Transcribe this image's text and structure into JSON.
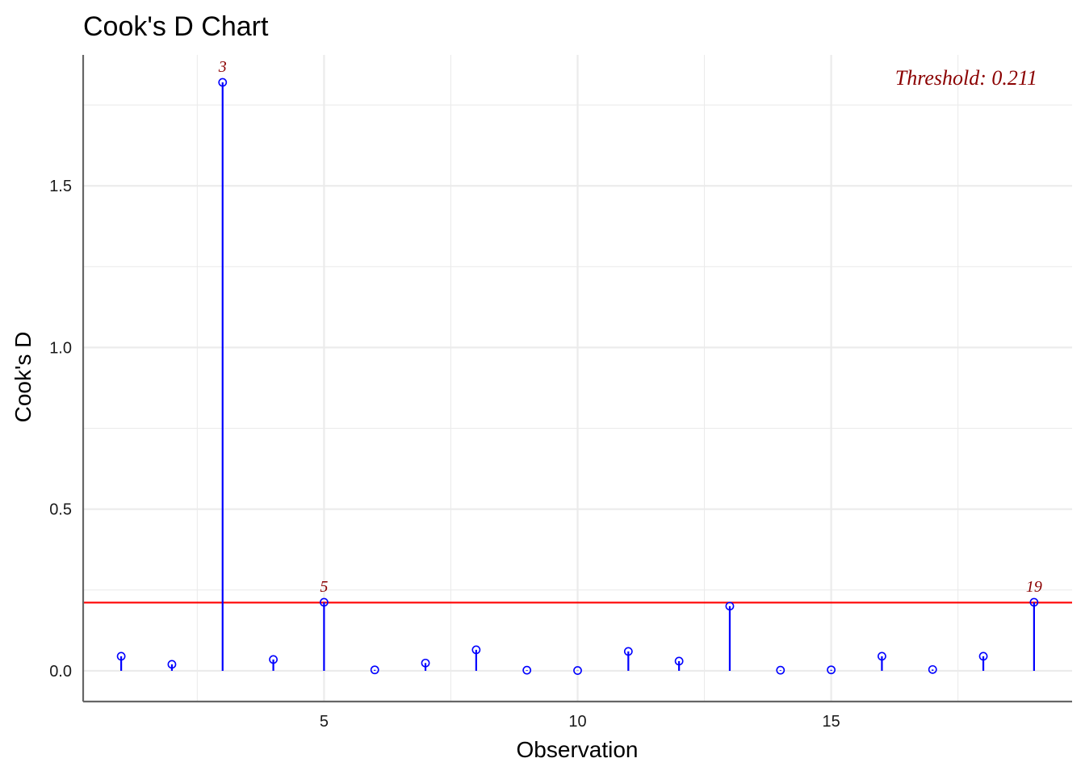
{
  "chart_data": {
    "type": "scatter",
    "title": "Cook's D Chart",
    "xlabel": "Observation",
    "ylabel": "Cook's D",
    "xlim": [
      0.25,
      19.75
    ],
    "ylim": [
      -0.095,
      1.905
    ],
    "x_ticks": [
      5,
      10,
      15
    ],
    "x_tick_labels": [
      "5",
      "10",
      "15"
    ],
    "y_ticks": [
      0.0,
      0.5,
      1.0,
      1.5
    ],
    "y_tick_labels": [
      "0.0",
      "0.5",
      "1.0",
      "1.5"
    ],
    "grid": true,
    "threshold": 0.211,
    "threshold_label": "Threshold: 0.211",
    "x": [
      1,
      2,
      3,
      4,
      5,
      6,
      7,
      8,
      9,
      10,
      11,
      12,
      13,
      14,
      15,
      16,
      17,
      18,
      19
    ],
    "values": [
      0.045,
      0.02,
      1.82,
      0.035,
      0.212,
      0.003,
      0.024,
      0.065,
      0.002,
      0.001,
      0.06,
      0.03,
      0.2,
      0.002,
      0.003,
      0.045,
      0.004,
      0.045,
      0.212
    ],
    "point_labels": [
      {
        "x": 3,
        "text": "3"
      },
      {
        "x": 5,
        "text": "5"
      },
      {
        "x": 19,
        "text": "19"
      }
    ],
    "colors": {
      "points": "#0000FF",
      "threshold_line": "#FF0000",
      "labels": "#8B0000",
      "grid": "#EBEBEB",
      "axis": "#666666"
    }
  }
}
